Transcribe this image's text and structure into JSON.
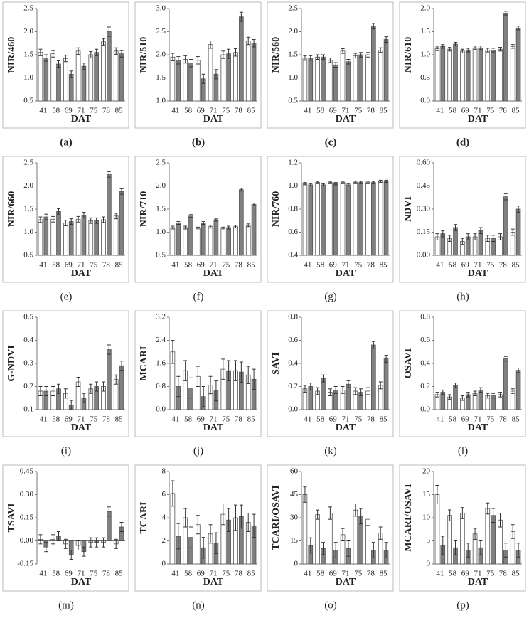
{
  "chart_data": [
    {
      "type": "bar",
      "y_label": "NIR/460",
      "x_label": "DAT",
      "caption": "(a)",
      "categories": [
        "41",
        "58",
        "69",
        "71",
        "75",
        "78",
        "85"
      ],
      "ylim": [
        0.5,
        2.5
      ],
      "yticks": [
        0.5,
        {
          "value": 1,
          "label": "1.0"
        },
        1.5,
        {
          "value": 2,
          "label": "2.0"
        },
        2.5
      ],
      "grid": false,
      "series": [
        {
          "color": "#ffffff",
          "values": [
            1.55,
            1.52,
            1.42,
            1.58,
            1.5,
            1.78,
            1.58
          ],
          "errors": [
            0.07,
            0.07,
            0.07,
            0.07,
            0.07,
            0.07,
            0.07
          ]
        },
        {
          "color": "#808080",
          "values": [
            1.43,
            1.3,
            1.08,
            1.25,
            1.55,
            2.0,
            1.52
          ],
          "errors": [
            0.07,
            0.07,
            0.07,
            0.07,
            0.07,
            0.1,
            0.07
          ]
        }
      ]
    },
    {
      "type": "bar",
      "y_label": "NIR/510",
      "x_label": "DAT",
      "caption": "(b)",
      "categories": [
        "41",
        "58",
        "69",
        "71",
        "75",
        "78",
        "85"
      ],
      "ylim": [
        1,
        3
      ],
      "yticks": [
        {
          "value": 1,
          "label": "1.0"
        },
        1.5,
        {
          "value": 2,
          "label": "2.0"
        },
        2.5,
        {
          "value": 3,
          "label": "3.0"
        }
      ],
      "grid": false,
      "series": [
        {
          "color": "#ffffff",
          "values": [
            1.95,
            1.9,
            1.88,
            2.22,
            2.0,
            2.05,
            2.3
          ],
          "errors": [
            0.08,
            0.08,
            0.08,
            0.08,
            0.08,
            0.08,
            0.08
          ]
        },
        {
          "color": "#808080",
          "values": [
            1.88,
            1.82,
            1.48,
            1.58,
            2.02,
            2.82,
            2.25
          ],
          "errors": [
            0.08,
            0.08,
            0.1,
            0.1,
            0.1,
            0.1,
            0.08
          ]
        }
      ]
    },
    {
      "type": "bar",
      "y_label": "NIR/560",
      "x_label": "DAT",
      "caption": "(c)",
      "categories": [
        "41",
        "58",
        "69",
        "71",
        "75",
        "78",
        "85"
      ],
      "ylim": [
        0.5,
        2.5
      ],
      "yticks": [
        0.5,
        {
          "value": 1,
          "label": "1.0"
        },
        1.5,
        {
          "value": 2,
          "label": "2.0"
        },
        2.5
      ],
      "grid": false,
      "series": [
        {
          "color": "#ffffff",
          "values": [
            1.43,
            1.45,
            1.38,
            1.58,
            1.48,
            1.5,
            1.6
          ],
          "errors": [
            0.05,
            0.05,
            0.05,
            0.05,
            0.05,
            0.05,
            0.05
          ]
        },
        {
          "color": "#808080",
          "values": [
            1.43,
            1.45,
            1.28,
            1.35,
            1.5,
            2.12,
            1.83
          ],
          "errors": [
            0.05,
            0.05,
            0.05,
            0.05,
            0.05,
            0.06,
            0.06
          ]
        }
      ]
    },
    {
      "type": "bar",
      "y_label": "NIR/610",
      "x_label": "DAT",
      "caption": "(d)",
      "categories": [
        "41",
        "58",
        "69",
        "71",
        "75",
        "78",
        "85"
      ],
      "ylim": [
        0,
        2
      ],
      "yticks": [
        {
          "value": 0,
          "label": "0.0"
        },
        0.5,
        {
          "value": 1,
          "label": "1.0"
        },
        1.5,
        {
          "value": 2,
          "label": "2.0"
        }
      ],
      "grid": false,
      "series": [
        {
          "color": "#ffffff",
          "values": [
            1.13,
            1.12,
            1.08,
            1.15,
            1.1,
            1.12,
            1.18
          ],
          "errors": [
            0.04,
            0.04,
            0.04,
            0.04,
            0.04,
            0.04,
            0.04
          ]
        },
        {
          "color": "#808080",
          "values": [
            1.18,
            1.23,
            1.1,
            1.15,
            1.1,
            1.9,
            1.58
          ],
          "errors": [
            0.04,
            0.04,
            0.04,
            0.04,
            0.04,
            0.04,
            0.04
          ]
        }
      ]
    },
    {
      "type": "bar",
      "y_label": "NIR/660",
      "x_label": "DAT",
      "caption": "(e)",
      "categories": [
        "41",
        "58",
        "69",
        "71",
        "75",
        "78",
        "85"
      ],
      "ylim": [
        0.5,
        2.5
      ],
      "yticks": [
        0.5,
        {
          "value": 1,
          "label": "1.0"
        },
        1.5,
        {
          "value": 2,
          "label": "2.0"
        },
        2.5
      ],
      "grid": false,
      "series": [
        {
          "color": "#ffffff",
          "values": [
            1.27,
            1.28,
            1.2,
            1.28,
            1.25,
            1.27,
            1.35
          ],
          "errors": [
            0.06,
            0.06,
            0.06,
            0.06,
            0.06,
            0.06,
            0.06
          ]
        },
        {
          "color": "#808080",
          "values": [
            1.33,
            1.45,
            1.23,
            1.37,
            1.25,
            2.25,
            1.88
          ],
          "errors": [
            0.06,
            0.06,
            0.06,
            0.06,
            0.06,
            0.06,
            0.06
          ]
        }
      ]
    },
    {
      "type": "bar",
      "y_label": "NIR/710",
      "x_label": "DAT",
      "caption": "(f)",
      "categories": [
        "41",
        "58",
        "69",
        "71",
        "75",
        "78",
        "85"
      ],
      "ylim": [
        0.5,
        2.5
      ],
      "yticks": [
        0.5,
        {
          "value": 1,
          "label": "1.0"
        },
        1.5,
        {
          "value": 2,
          "label": "2.0"
        },
        2.5
      ],
      "grid": false,
      "series": [
        {
          "color": "#ffffff",
          "values": [
            1.1,
            1.1,
            1.08,
            1.12,
            1.08,
            1.12,
            1.15
          ],
          "errors": [
            0.03,
            0.03,
            0.03,
            0.03,
            0.03,
            0.03,
            0.03
          ]
        },
        {
          "color": "#808080",
          "values": [
            1.2,
            1.35,
            1.2,
            1.27,
            1.1,
            1.92,
            1.6
          ],
          "errors": [
            0.03,
            0.03,
            0.03,
            0.03,
            0.03,
            0.03,
            0.03
          ]
        }
      ]
    },
    {
      "type": "bar",
      "y_label": "NIR/760",
      "x_label": "DAT",
      "caption": "(g)",
      "categories": [
        "41",
        "58",
        "69",
        "71",
        "75",
        "78",
        "85"
      ],
      "ylim": [
        0.4,
        1.2
      ],
      "yticks": [
        0.4,
        0.6,
        0.8,
        {
          "value": 1,
          "label": "1.0"
        },
        1.2
      ],
      "grid": false,
      "series": [
        {
          "color": "#ffffff",
          "values": [
            1.02,
            1.03,
            1.03,
            1.03,
            1.03,
            1.03,
            1.04
          ],
          "errors": [
            0.01,
            0.01,
            0.01,
            0.01,
            0.01,
            0.01,
            0.01
          ]
        },
        {
          "color": "#808080",
          "values": [
            1.01,
            1.01,
            1.02,
            1.01,
            1.03,
            1.03,
            1.04
          ],
          "errors": [
            0.01,
            0.01,
            0.01,
            0.01,
            0.01,
            0.01,
            0.01
          ]
        }
      ]
    },
    {
      "type": "bar",
      "y_label": "NDVI",
      "x_label": "DAT",
      "caption": "(h)",
      "categories": [
        "41",
        "58",
        "69",
        "71",
        "75",
        "78",
        "85"
      ],
      "ylim": [
        0,
        0.6
      ],
      "yticks": [
        {
          "value": 0,
          "label": "0.00"
        },
        {
          "value": 0.15,
          "label": "0.15"
        },
        {
          "value": 0.3,
          "label": "0.30"
        },
        {
          "value": 0.45,
          "label": "0.45"
        },
        {
          "value": 0.6,
          "label": "0.60"
        }
      ],
      "grid": false,
      "series": [
        {
          "color": "#ffffff",
          "values": [
            0.12,
            0.11,
            0.09,
            0.12,
            0.11,
            0.12,
            0.15
          ],
          "errors": [
            0.02,
            0.02,
            0.02,
            0.02,
            0.02,
            0.02,
            0.02
          ]
        },
        {
          "color": "#808080",
          "values": [
            0.14,
            0.18,
            0.12,
            0.16,
            0.11,
            0.38,
            0.3
          ],
          "errors": [
            0.02,
            0.02,
            0.02,
            0.02,
            0.02,
            0.02,
            0.02
          ]
        }
      ]
    },
    {
      "type": "bar",
      "y_label": "G-NDVI",
      "x_label": "DAT",
      "caption": "(i)",
      "categories": [
        "41",
        "58",
        "69",
        "71",
        "75",
        "78",
        "85"
      ],
      "ylim": [
        0.1,
        0.5
      ],
      "yticks": [
        0.1,
        0.2,
        0.3,
        0.4,
        0.5
      ],
      "grid": false,
      "series": [
        {
          "color": "#ffffff",
          "values": [
            0.18,
            0.18,
            0.17,
            0.22,
            0.19,
            0.2,
            0.23
          ],
          "errors": [
            0.02,
            0.02,
            0.02,
            0.02,
            0.02,
            0.02,
            0.02
          ]
        },
        {
          "color": "#808080",
          "values": [
            0.18,
            0.19,
            0.12,
            0.15,
            0.2,
            0.36,
            0.29
          ],
          "errors": [
            0.02,
            0.02,
            0.02,
            0.02,
            0.02,
            0.02,
            0.02
          ]
        }
      ]
    },
    {
      "type": "bar",
      "y_label": "MCARI",
      "x_label": "DAT",
      "caption": "(j)",
      "categories": [
        "41",
        "58",
        "69",
        "71",
        "75",
        "78",
        "85"
      ],
      "ylim": [
        0,
        3.2
      ],
      "yticks": [
        {
          "value": 0,
          "label": "0.0"
        },
        0.8,
        1.6,
        2.4,
        3.2
      ],
      "grid": false,
      "series": [
        {
          "color": "#ffffff",
          "values": [
            2.0,
            1.35,
            1.15,
            0.85,
            1.4,
            1.35,
            1.2
          ],
          "errors": [
            0.4,
            0.35,
            0.35,
            0.3,
            0.35,
            0.35,
            0.3
          ]
        },
        {
          "color": "#808080",
          "values": [
            0.8,
            0.75,
            0.45,
            0.65,
            1.35,
            1.3,
            1.05
          ],
          "errors": [
            0.35,
            0.35,
            0.35,
            0.35,
            0.35,
            0.35,
            0.35
          ]
        }
      ]
    },
    {
      "type": "bar",
      "y_label": "SAVI",
      "x_label": "DAT",
      "caption": "(k)",
      "categories": [
        "41",
        "58",
        "69",
        "71",
        "75",
        "78",
        "85"
      ],
      "ylim": [
        0,
        0.8
      ],
      "yticks": [
        {
          "value": 0,
          "label": "0.0"
        },
        0.2,
        0.4,
        0.6,
        0.8
      ],
      "grid": false,
      "series": [
        {
          "color": "#ffffff",
          "values": [
            0.18,
            0.16,
            0.15,
            0.17,
            0.16,
            0.16,
            0.21
          ],
          "errors": [
            0.03,
            0.03,
            0.03,
            0.03,
            0.03,
            0.03,
            0.03
          ]
        },
        {
          "color": "#808080",
          "values": [
            0.2,
            0.27,
            0.17,
            0.22,
            0.15,
            0.56,
            0.44
          ],
          "errors": [
            0.03,
            0.03,
            0.03,
            0.03,
            0.03,
            0.03,
            0.03
          ]
        }
      ]
    },
    {
      "type": "bar",
      "y_label": "OSAVI",
      "x_label": "DAT",
      "caption": "(l)",
      "categories": [
        "41",
        "58",
        "69",
        "71",
        "75",
        "78",
        "85"
      ],
      "ylim": [
        0,
        0.8
      ],
      "yticks": [
        {
          "value": 0,
          "label": "0.0"
        },
        0.2,
        0.4,
        0.6,
        0.8
      ],
      "grid": false,
      "series": [
        {
          "color": "#ffffff",
          "values": [
            0.13,
            0.11,
            0.1,
            0.14,
            0.12,
            0.13,
            0.16
          ],
          "errors": [
            0.02,
            0.02,
            0.02,
            0.02,
            0.02,
            0.02,
            0.02
          ]
        },
        {
          "color": "#808080",
          "values": [
            0.15,
            0.21,
            0.13,
            0.17,
            0.12,
            0.44,
            0.34
          ],
          "errors": [
            0.02,
            0.02,
            0.02,
            0.02,
            0.02,
            0.02,
            0.02
          ]
        }
      ]
    },
    {
      "type": "bar",
      "y_label": "TSAVI",
      "x_label": "DAT",
      "caption": "(m)",
      "categories": [
        "41",
        "58",
        "69",
        "71",
        "75",
        "78",
        "85"
      ],
      "ylim": [
        -0.15,
        0.45
      ],
      "yticks": [
        -0.15,
        {
          "value": 0,
          "label": "0.00"
        },
        0.15,
        {
          "value": 0.3,
          "label": "0.30"
        },
        0.45
      ],
      "grid": false,
      "series": [
        {
          "color": "#ffffff",
          "values": [
            0.01,
            0.01,
            -0.02,
            -0.03,
            -0.01,
            -0.01,
            -0.02
          ],
          "errors": [
            0.03,
            0.03,
            0.03,
            0.03,
            0.03,
            0.03,
            0.03
          ]
        },
        {
          "color": "#808080",
          "values": [
            -0.04,
            0.03,
            -0.09,
            -0.07,
            -0.01,
            0.19,
            0.09
          ],
          "errors": [
            0.03,
            0.03,
            0.03,
            0.03,
            0.03,
            0.03,
            0.03
          ]
        }
      ]
    },
    {
      "type": "bar",
      "y_label": "TCARI",
      "x_label": "DAT",
      "caption": "(n)",
      "categories": [
        "41",
        "58",
        "69",
        "71",
        "75",
        "78",
        "85"
      ],
      "ylim": [
        0,
        8
      ],
      "yticks": [
        0,
        2,
        4,
        6,
        8
      ],
      "grid": false,
      "series": [
        {
          "color": "#ffffff",
          "values": [
            6.1,
            4.0,
            3.4,
            2.6,
            4.3,
            4.0,
            3.6
          ],
          "errors": [
            1.1,
            0.8,
            0.8,
            0.8,
            0.9,
            1.1,
            0.8
          ]
        },
        {
          "color": "#808080",
          "values": [
            2.4,
            2.3,
            1.4,
            1.8,
            3.8,
            4.1,
            3.3
          ],
          "errors": [
            1.1,
            0.9,
            0.9,
            0.9,
            1.0,
            1.0,
            1.0
          ]
        }
      ]
    },
    {
      "type": "bar",
      "y_label": "TCARI/OSAVI",
      "x_label": "DAT",
      "caption": "(o)",
      "categories": [
        "41",
        "58",
        "69",
        "71",
        "75",
        "78",
        "85"
      ],
      "ylim": [
        0,
        60
      ],
      "yticks": [
        0,
        15,
        30,
        45,
        60
      ],
      "grid": false,
      "series": [
        {
          "color": "#ffffff",
          "values": [
            45,
            32,
            33,
            19,
            35,
            29,
            20
          ],
          "errors": [
            5,
            3,
            4,
            4,
            4,
            4,
            4
          ]
        },
        {
          "color": "#808080",
          "values": [
            12,
            10,
            9,
            10,
            31,
            9,
            9
          ],
          "errors": [
            5,
            4,
            5,
            5,
            5,
            5,
            5
          ]
        }
      ]
    },
    {
      "type": "bar",
      "y_label": "MCARI/OSAVI",
      "x_label": "DAT",
      "caption": "(p)",
      "categories": [
        "41",
        "58",
        "69",
        "71",
        "75",
        "78",
        "85"
      ],
      "ylim": [
        0,
        20
      ],
      "yticks": [
        0,
        5,
        10,
        15,
        20
      ],
      "grid": false,
      "series": [
        {
          "color": "#ffffff",
          "values": [
            15,
            10.5,
            11,
            6.5,
            12,
            9.5,
            7
          ],
          "errors": [
            2,
            1.2,
            1.2,
            1.2,
            1.2,
            1.5,
            1.5
          ]
        },
        {
          "color": "#808080",
          "values": [
            4,
            3.5,
            3,
            3.5,
            10.5,
            3,
            3
          ],
          "errors": [
            2,
            1.5,
            1.5,
            1.5,
            1.5,
            1.5,
            1.5
          ]
        }
      ]
    }
  ]
}
